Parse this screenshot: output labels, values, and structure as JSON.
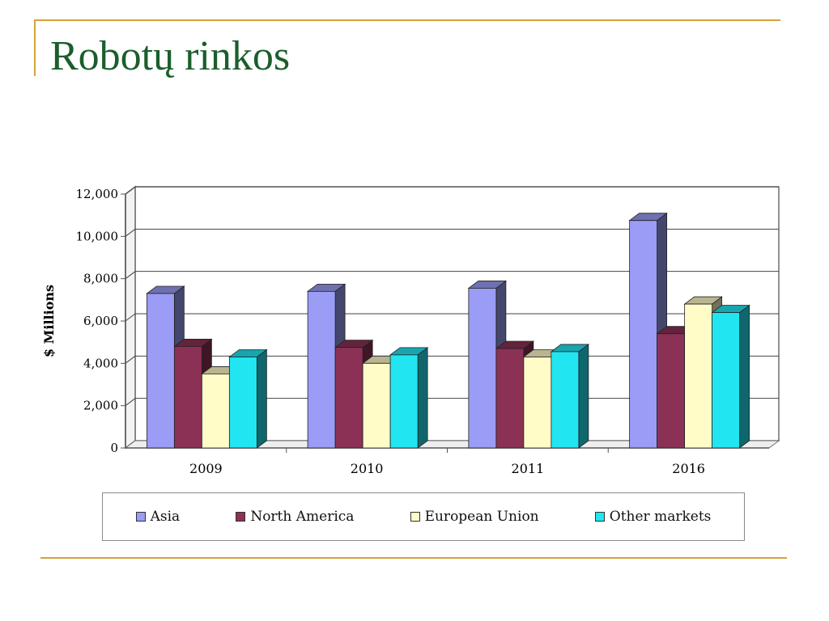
{
  "slide": {
    "title": "Robotų rinkos"
  },
  "chart_data": {
    "type": "bar",
    "ylabel": "$ Millions",
    "ylim": [
      0,
      12000
    ],
    "yticks": [
      0,
      2000,
      4000,
      6000,
      8000,
      10000,
      12000
    ],
    "ytick_labels": [
      "0",
      "2,000",
      "4,000",
      "6,000",
      "8,000",
      "10,000",
      "12,000"
    ],
    "categories": [
      "2009",
      "2010",
      "2011",
      "2016"
    ],
    "grid": true,
    "legend_position": "bottom",
    "series": [
      {
        "name": "Asia",
        "color": "#9a9cf5",
        "values": [
          7300,
          7400,
          7550,
          10750
        ]
      },
      {
        "name": "North America",
        "color": "#8b3155",
        "values": [
          4800,
          4750,
          4700,
          5400
        ]
      },
      {
        "name": "European Union",
        "color": "#fffcc8",
        "values": [
          3500,
          4000,
          4300,
          6800
        ]
      },
      {
        "name": "Other markets",
        "color": "#22e5f2",
        "values": [
          4300,
          4400,
          4550,
          6400
        ]
      }
    ]
  }
}
